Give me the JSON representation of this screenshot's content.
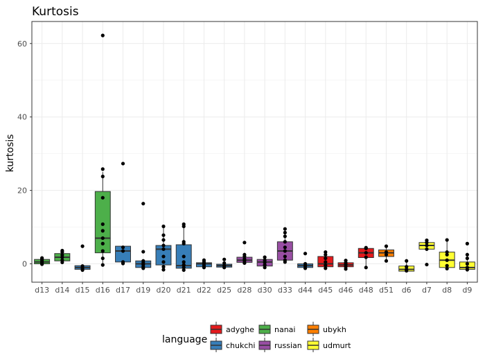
{
  "chart_data": {
    "type": "boxplot",
    "title": "Kurtosis",
    "xlabel": "",
    "ylabel": "kurtosis",
    "ylim": [
      -5,
      66
    ],
    "yticks": [
      0,
      20,
      40,
      60
    ],
    "grid": true,
    "legend": {
      "title": "language",
      "position": "bottom",
      "items": [
        {
          "name": "adyghe",
          "color": "#e41a1c"
        },
        {
          "name": "chukchi",
          "color": "#377eb8"
        },
        {
          "name": "nanai",
          "color": "#4daf4a"
        },
        {
          "name": "russian",
          "color": "#984ea3"
        },
        {
          "name": "ubykh",
          "color": "#ff7f00"
        },
        {
          "name": "udmurt",
          "color": "#ffff33"
        }
      ]
    },
    "categories": [
      {
        "label": "d13",
        "language": "nanai",
        "q1": 0.0,
        "median": 0.5,
        "q3": 1.2,
        "wlow": -0.2,
        "whigh": 1.6,
        "points": [
          -0.1,
          0.2,
          0.5,
          0.9,
          1.3,
          1.6
        ]
      },
      {
        "label": "d14",
        "language": "nanai",
        "q1": 0.8,
        "median": 1.8,
        "q3": 2.8,
        "wlow": 0.3,
        "whigh": 3.6,
        "points": [
          0.4,
          1.0,
          1.8,
          2.4,
          3.2,
          3.6
        ]
      },
      {
        "label": "d15",
        "language": "chukchi",
        "q1": -1.5,
        "median": -1.0,
        "q3": -0.5,
        "wlow": -1.8,
        "whigh": -0.3,
        "points": [
          -1.7,
          -1.2,
          -0.6,
          4.8
        ]
      },
      {
        "label": "d16",
        "language": "nanai",
        "q1": 3.0,
        "median": 7.0,
        "q3": 19.7,
        "wlow": -0.5,
        "whigh": 25.0,
        "points": [
          -0.3,
          1.5,
          3.5,
          5.5,
          7.0,
          9.0,
          10.8,
          18.0,
          23.8,
          25.8,
          62.2
        ]
      },
      {
        "label": "d17",
        "language": "chukchi",
        "q1": 0.5,
        "median": 3.5,
        "q3": 4.8,
        "wlow": 0.0,
        "whigh": 5.0,
        "points": [
          0.1,
          0.5,
          3.5,
          4.5,
          27.3
        ]
      },
      {
        "label": "d19",
        "language": "chukchi",
        "q1": -1.0,
        "median": 0.0,
        "q3": 0.8,
        "wlow": -1.5,
        "whigh": 1.0,
        "points": [
          -1.2,
          -0.8,
          -0.2,
          0.3,
          0.8,
          3.3,
          16.4
        ]
      },
      {
        "label": "d20",
        "language": "chukchi",
        "q1": -0.3,
        "median": 4.0,
        "q3": 5.0,
        "wlow": -1.8,
        "whigh": 10.0,
        "points": [
          -1.6,
          -0.8,
          0.5,
          2.0,
          4.0,
          5.0,
          6.5,
          7.8,
          10.2
        ]
      },
      {
        "label": "d21",
        "language": "chukchi",
        "q1": -1.2,
        "median": -0.5,
        "q3": 5.2,
        "wlow": -1.8,
        "whigh": 10.5,
        "points": [
          -1.7,
          -1.0,
          -0.3,
          0.5,
          2.0,
          5.5,
          6.0,
          10.2,
          10.8
        ]
      },
      {
        "label": "d22",
        "language": "chukchi",
        "q1": -0.8,
        "median": 0.0,
        "q3": 0.3,
        "wlow": -1.2,
        "whigh": 1.0,
        "points": [
          -1.0,
          -0.5,
          0.0,
          0.5,
          1.0
        ]
      },
      {
        "label": "d25",
        "language": "chukchi",
        "q1": -0.9,
        "median": -0.5,
        "q3": -0.1,
        "wlow": -1.2,
        "whigh": 0.3,
        "points": [
          -1.0,
          -0.5,
          0.2,
          1.2
        ]
      },
      {
        "label": "d28",
        "language": "russian",
        "q1": 0.4,
        "median": 1.0,
        "q3": 1.8,
        "wlow": 0.0,
        "whigh": 2.3,
        "points": [
          0.2,
          0.8,
          1.3,
          2.0,
          2.5,
          5.8
        ]
      },
      {
        "label": "d30",
        "language": "russian",
        "q1": -0.6,
        "median": 0.5,
        "q3": 1.2,
        "wlow": -1.2,
        "whigh": 2.0,
        "points": [
          -1.0,
          -0.3,
          0.4,
          1.0,
          1.8
        ]
      },
      {
        "label": "d33",
        "language": "russian",
        "q1": 1.0,
        "median": 3.5,
        "q3": 6.0,
        "wlow": 0.3,
        "whigh": 9.5,
        "points": [
          0.5,
          1.0,
          2.0,
          3.5,
          4.5,
          6.0,
          7.5,
          8.5,
          9.5
        ]
      },
      {
        "label": "d44",
        "language": "chukchi",
        "q1": -1.0,
        "median": -0.5,
        "q3": 0.0,
        "wlow": -1.3,
        "whigh": 0.3,
        "points": [
          -1.2,
          -0.6,
          0.0,
          2.8
        ]
      },
      {
        "label": "d45",
        "language": "adyghe",
        "q1": -0.8,
        "median": 0.0,
        "q3": 2.0,
        "wlow": -1.5,
        "whigh": 3.2,
        "points": [
          -1.2,
          -0.4,
          0.5,
          1.5,
          2.5,
          3.2
        ]
      },
      {
        "label": "d46",
        "language": "adyghe",
        "q1": -0.8,
        "median": -0.3,
        "q3": 0.3,
        "wlow": -1.5,
        "whigh": 0.9,
        "points": [
          -1.4,
          -0.8,
          -0.2,
          0.3,
          0.9
        ]
      },
      {
        "label": "d48",
        "language": "adyghe",
        "q1": 1.7,
        "median": 3.0,
        "q3": 4.2,
        "wlow": -1.0,
        "whigh": 4.4,
        "points": [
          -1.0,
          1.8,
          3.0,
          4.2,
          4.4
        ]
      },
      {
        "label": "d51",
        "language": "ubykh",
        "q1": 2.0,
        "median": 3.0,
        "q3": 3.8,
        "wlow": 0.8,
        "whigh": 4.8,
        "points": [
          0.8,
          2.5,
          3.2,
          4.8
        ]
      },
      {
        "label": "d6",
        "language": "udmurt",
        "q1": -2.0,
        "median": -1.5,
        "q3": -0.6,
        "wlow": -2.0,
        "whigh": 0.8,
        "points": [
          -1.9,
          -1.5,
          -0.8,
          0.8
        ]
      },
      {
        "label": "d7",
        "language": "udmurt",
        "q1": 4.0,
        "median": 5.0,
        "q3": 5.8,
        "wlow": 3.8,
        "whigh": 6.5,
        "points": [
          -0.2,
          4.0,
          5.0,
          5.8,
          6.4
        ]
      },
      {
        "label": "d8",
        "language": "udmurt",
        "q1": -1.0,
        "median": 1.0,
        "q3": 3.2,
        "wlow": -1.5,
        "whigh": 6.5,
        "points": [
          -1.3,
          -0.5,
          1.0,
          2.5,
          3.2,
          6.5
        ]
      },
      {
        "label": "d9",
        "language": "udmurt",
        "q1": -1.5,
        "median": -1.0,
        "q3": 0.5,
        "wlow": -1.8,
        "whigh": 2.5,
        "points": [
          -1.6,
          -1.0,
          0.0,
          1.5,
          2.5,
          5.5
        ]
      }
    ]
  }
}
